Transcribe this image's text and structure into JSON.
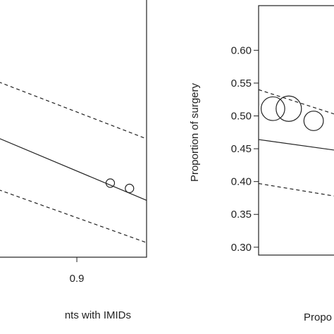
{
  "chart_data": [
    {
      "type": "scatter",
      "xlabel": "nts with IMIDs",
      "xlim": [
        0.845,
        0.949
      ],
      "ylim": [
        0.26,
        0.651
      ],
      "xticks": [
        0.9
      ],
      "x": [
        0.9235,
        0.937
      ],
      "values": [
        0.372,
        0.364
      ],
      "sizes": [
        1,
        1
      ],
      "lines": [
        {
          "style": "solid",
          "x": [
            0.845,
            0.949
          ],
          "values": [
            0.44,
            0.346
          ]
        },
        {
          "style": "dashed",
          "x": [
            0.845,
            0.949
          ],
          "values": [
            0.525,
            0.439
          ]
        },
        {
          "style": "dashed",
          "x": [
            0.845,
            0.949
          ],
          "values": [
            0.362,
            0.282
          ]
        }
      ]
    },
    {
      "type": "scatter",
      "xlabel": "Propo",
      "ylabel": "Proportion of surgery",
      "xlim": [
        0.2,
        0.3
      ],
      "ylim": [
        0.288,
        0.668
      ],
      "yticks": [
        {
          "value": 0.3,
          "label": "0.30"
        },
        0.35,
        {
          "value": 0.4,
          "label": "0.40"
        },
        0.45,
        {
          "value": 0.5,
          "label": "0.50"
        },
        0.55,
        {
          "value": 0.6,
          "label": "0.60"
        }
      ],
      "x": [
        0.219,
        0.24,
        0.273
      ],
      "values": [
        0.511,
        0.511,
        0.4925
      ],
      "sizes": [
        2.8,
        3,
        2.3
      ],
      "lines": [
        {
          "style": "solid",
          "x": [
            0.2,
            0.3
          ],
          "values": [
            0.464,
            0.448
          ]
        },
        {
          "style": "dashed",
          "x": [
            0.2,
            0.3
          ],
          "values": [
            0.54,
            0.503
          ]
        },
        {
          "style": "dashed",
          "x": [
            0.2,
            0.3
          ],
          "values": [
            0.397,
            0.378
          ]
        }
      ]
    }
  ]
}
